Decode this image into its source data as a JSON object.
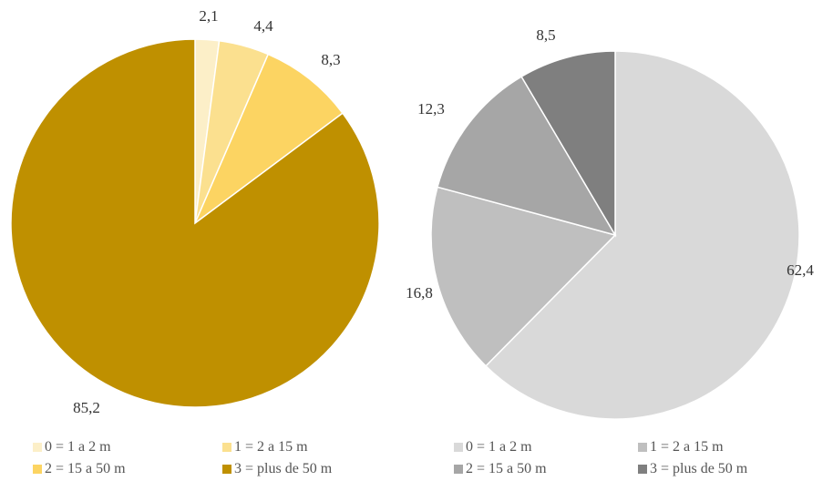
{
  "chart_data": [
    {
      "type": "pie",
      "start_angle_deg": 0,
      "direction": "clockwise",
      "categories": [
        "0 = 1 a 2 m",
        "1 = 2 a  15 m",
        "2 = 15 a 50 m",
        "3 = plus de 50 m"
      ],
      "values": [
        2.1,
        4.4,
        8.3,
        85.2
      ],
      "labels": [
        "2,1",
        "4,4",
        "8,3",
        "85,2"
      ],
      "colors": [
        "#fcefc8",
        "#fbe08f",
        "#fcd462",
        "#bf9000"
      ],
      "legend": "bottom"
    },
    {
      "type": "pie",
      "start_angle_deg": 0,
      "direction": "clockwise",
      "categories": [
        "0 = 1 a 2 m",
        "1 = 2 a  15 m",
        "2 = 15 a 50 m",
        "3 = plus de 50 m"
      ],
      "values": [
        62.4,
        16.8,
        12.3,
        8.5
      ],
      "labels": [
        "62,4",
        "16,8",
        "12,3",
        "8,5"
      ],
      "colors": [
        "#d9d9d9",
        "#bfbfbf",
        "#a6a6a6",
        "#7f7f7f"
      ],
      "legend": "bottom"
    }
  ]
}
